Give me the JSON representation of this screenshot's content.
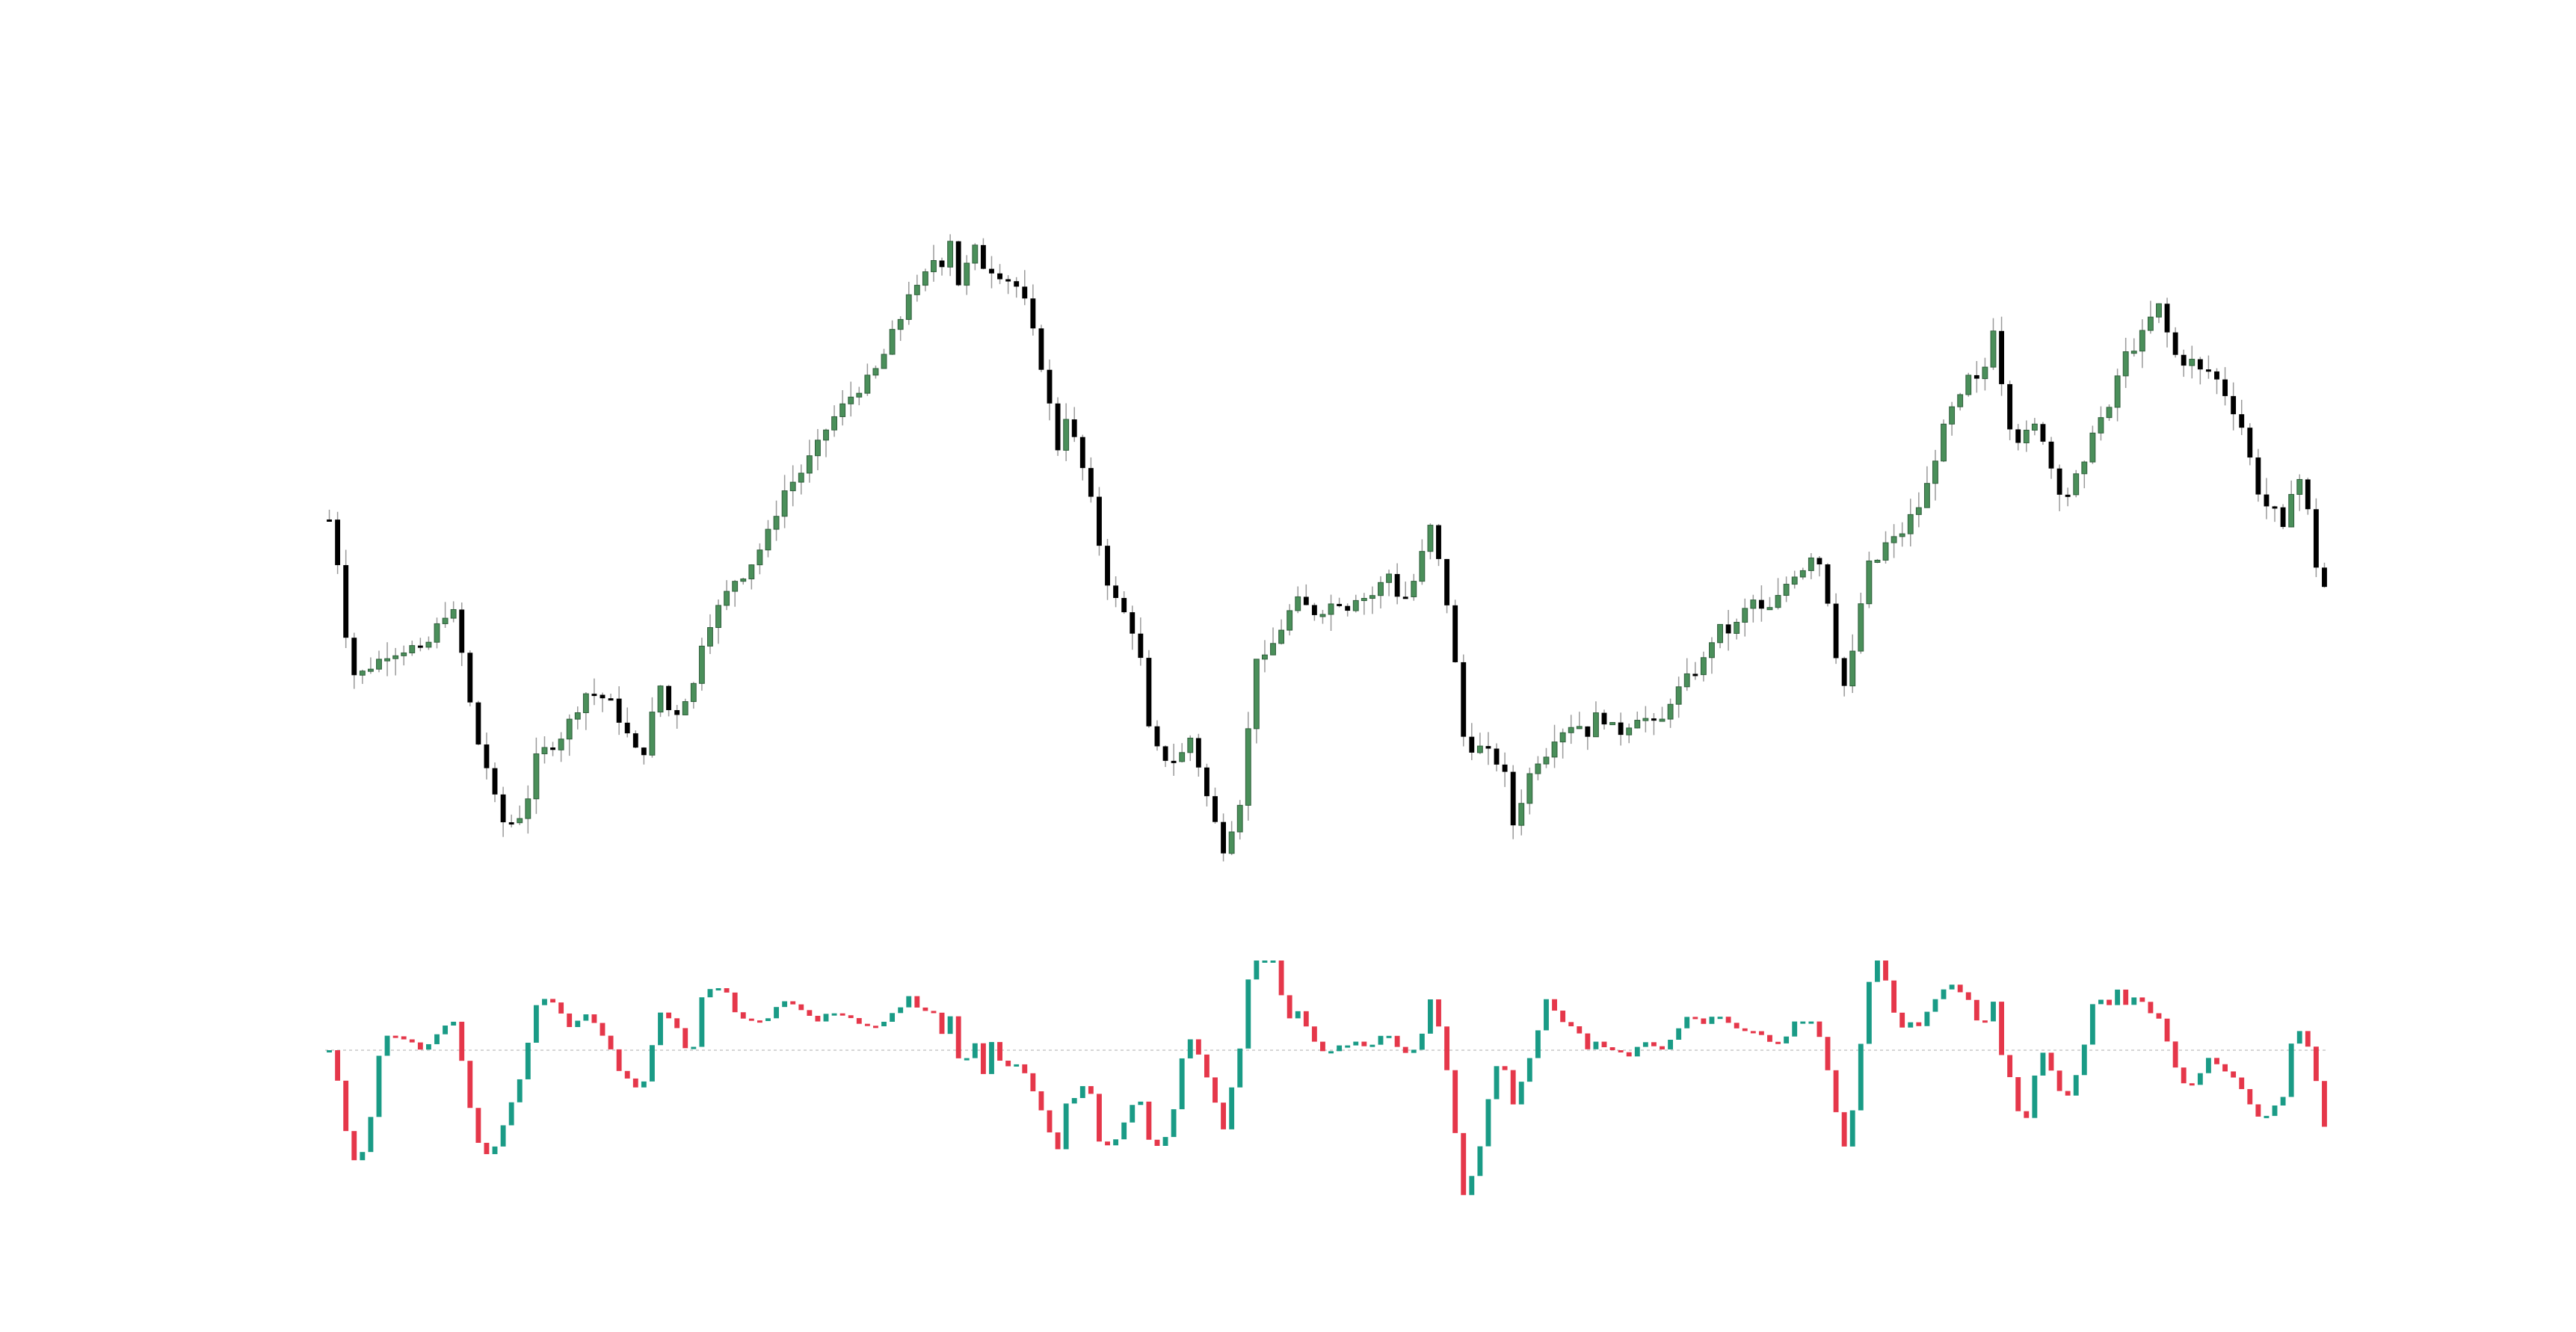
{
  "colors": {
    "background": "#ffffff",
    "bullish": "#4a8f5a",
    "bearish": "#000000",
    "wick": "#9a9a9a",
    "osc_up": "#1a9b86",
    "osc_down": "#e5374a",
    "zero_line": "#c8c8c8"
  },
  "chart_data": [
    {
      "type": "candlestick",
      "title": "",
      "xlabel": "",
      "ylabel": "",
      "grid": false,
      "legend": "none",
      "x_count": 242,
      "ylim": [
        0,
        100
      ],
      "anchors": [
        [
          0,
          50
        ],
        [
          2,
          42
        ],
        [
          4,
          27
        ],
        [
          6,
          27
        ],
        [
          11,
          30
        ],
        [
          16,
          31
        ],
        [
          18,
          30
        ],
        [
          20,
          33
        ],
        [
          22,
          36
        ],
        [
          24,
          36
        ],
        [
          26,
          28
        ],
        [
          28,
          18
        ],
        [
          30,
          14
        ],
        [
          33,
          5
        ],
        [
          36,
          5
        ],
        [
          38,
          8
        ],
        [
          40,
          15
        ],
        [
          44,
          17
        ],
        [
          50,
          25
        ],
        [
          51,
          24
        ],
        [
          54,
          23
        ],
        [
          56,
          20
        ],
        [
          60,
          14
        ],
        [
          62,
          20
        ],
        [
          63,
          26
        ],
        [
          64,
          25
        ],
        [
          66,
          20
        ],
        [
          68,
          23
        ],
        [
          70,
          25
        ],
        [
          72,
          33
        ],
        [
          75,
          37
        ],
        [
          78,
          41
        ],
        [
          80,
          42
        ],
        [
          84,
          47
        ],
        [
          86,
          51
        ],
        [
          88,
          55
        ],
        [
          90,
          56
        ],
        [
          94,
          61
        ],
        [
          96,
          64
        ],
        [
          100,
          68
        ],
        [
          104,
          71
        ],
        [
          106,
          73
        ],
        [
          108,
          77
        ],
        [
          110,
          80
        ],
        [
          112,
          85
        ],
        [
          113,
          84
        ],
        [
          116,
          88
        ],
        [
          117,
          90
        ],
        [
          118,
          88
        ],
        [
          120,
          93
        ],
        [
          121,
          85
        ],
        [
          122,
          86
        ],
        [
          124,
          91
        ],
        [
          125,
          88
        ],
        [
          128,
          87
        ],
        [
          130,
          86
        ],
        [
          132,
          85
        ],
        [
          134,
          82
        ],
        [
          136,
          76
        ],
        [
          138,
          70
        ],
        [
          140,
          60
        ],
        [
          142,
          66
        ],
        [
          144,
          60
        ],
        [
          146,
          55
        ],
        [
          148,
          47
        ],
        [
          150,
          40
        ],
        [
          152,
          37
        ],
        [
          154,
          35
        ],
        [
          156,
          30
        ],
        [
          158,
          17
        ],
        [
          160,
          15
        ],
        [
          162,
          14
        ],
        [
          164,
          15
        ],
        [
          166,
          18
        ],
        [
          168,
          11
        ],
        [
          170,
          6
        ],
        [
          172,
          1
        ],
        [
          174,
          5
        ],
        [
          176,
          10
        ],
        [
          178,
          30
        ],
        [
          180,
          29
        ],
        [
          182,
          32
        ],
        [
          184,
          35
        ],
        [
          186,
          38
        ],
        [
          188,
          37
        ],
        [
          190,
          36
        ],
        [
          192,
          37
        ],
        [
          194,
          38
        ],
        [
          196,
          37
        ],
        [
          198,
          39
        ],
        [
          200,
          38
        ],
        [
          202,
          40
        ],
        [
          204,
          42
        ],
        [
          206,
          38
        ],
        [
          208,
          39
        ],
        [
          212,
          49
        ],
        [
          214,
          42
        ],
        [
          216,
          34
        ]
      ],
      "series_b": [
        [
          216,
          28
        ],
        [
          218,
          18
        ],
        [
          220,
          16
        ],
        [
          222,
          16
        ],
        [
          226,
          13
        ],
        [
          228,
          4
        ],
        [
          230,
          10
        ],
        [
          232,
          14
        ],
        [
          234,
          15
        ],
        [
          236,
          18
        ],
        [
          240,
          20
        ],
        [
          242,
          18
        ],
        [
          244,
          21
        ],
        [
          246,
          20
        ],
        [
          248,
          18
        ],
        [
          252,
          21
        ],
        [
          256,
          19
        ],
        [
          258,
          23
        ],
        [
          260,
          25
        ],
        [
          262,
          27
        ],
        [
          264,
          28
        ],
        [
          266,
          32
        ],
        [
          268,
          34
        ],
        [
          270,
          33
        ],
        [
          272,
          36
        ],
        [
          274,
          38
        ],
        [
          276,
          36
        ],
        [
          278,
          37
        ],
        [
          280,
          40
        ],
        [
          282,
          42
        ],
        [
          284,
          43
        ],
        [
          286,
          46
        ],
        [
          288,
          40
        ],
        [
          290,
          30
        ],
        [
          292,
          24
        ],
        [
          294,
          34
        ],
        [
          296,
          43
        ],
        [
          298,
          44
        ],
        [
          300,
          47
        ],
        [
          302,
          47
        ],
        [
          304,
          50
        ],
        [
          306,
          52
        ],
        [
          308,
          56
        ],
        [
          310,
          62
        ],
        [
          312,
          66
        ],
        [
          314,
          68
        ],
        [
          316,
          72
        ],
        [
          318,
          69
        ],
        [
          320,
          80
        ],
        [
          322,
          70
        ],
        [
          324,
          62
        ],
        [
          326,
          62
        ],
        [
          328,
          64
        ],
        [
          330,
          62
        ],
        [
          332,
          56
        ],
        [
          334,
          53
        ],
        [
          336,
          56
        ],
        [
          338,
          58
        ],
        [
          340,
          66
        ],
        [
          342,
          64
        ],
        [
          344,
          71
        ],
        [
          346,
          75
        ],
        [
          348,
          76
        ],
        [
          350,
          79
        ],
        [
          352,
          82
        ],
        [
          354,
          77
        ],
        [
          356,
          73
        ],
        [
          358,
          74
        ],
        [
          360,
          72
        ],
        [
          362,
          72
        ],
        [
          364,
          70
        ],
        [
          366,
          67
        ],
        [
          368,
          64
        ],
        [
          370,
          58
        ],
        [
          372,
          52
        ],
        [
          374,
          52
        ],
        [
          376,
          48
        ],
        [
          378,
          56
        ],
        [
          380,
          56
        ],
        [
          382,
          44
        ],
        [
          384,
          40
        ]
      ]
    },
    {
      "type": "bar",
      "title": "",
      "xlabel": "",
      "ylabel": "",
      "grid": false,
      "legend": "none",
      "zero_line": true,
      "ylim": [
        -100,
        60
      ],
      "segments": [
        [
          [
            0,
            -8
          ],
          [
            2,
            -26
          ],
          [
            4,
            -24
          ],
          [
            6,
            -22
          ],
          [
            7,
            -22
          ]
        ],
        [
          [
            8,
            0
          ],
          [
            12,
            2
          ],
          [
            16,
            4
          ],
          [
            20,
            6
          ],
          [
            22,
            10
          ],
          [
            24,
            12
          ],
          [
            26,
            8
          ],
          [
            28,
            -6
          ],
          [
            30,
            -12
          ],
          [
            32,
            -6
          ],
          [
            34,
            -2
          ],
          [
            38,
            2
          ],
          [
            42,
            3
          ],
          [
            46,
            2
          ],
          [
            50,
            0
          ],
          [
            52,
            -2
          ],
          [
            56,
            2
          ],
          [
            58,
            8
          ],
          [
            60,
            4
          ],
          [
            62,
            -4
          ],
          [
            64,
            -6
          ],
          [
            66,
            -4
          ],
          [
            68,
            -2
          ],
          [
            70,
            0
          ],
          [
            74,
            2
          ],
          [
            80,
            4
          ],
          [
            86,
            3
          ],
          [
            92,
            6
          ],
          [
            96,
            10
          ],
          [
            100,
            16
          ],
          [
            104,
            22
          ],
          [
            106,
            34
          ],
          [
            108,
            40
          ],
          [
            110,
            48
          ],
          [
            112,
            52
          ]
        ]
      ]
    }
  ]
}
